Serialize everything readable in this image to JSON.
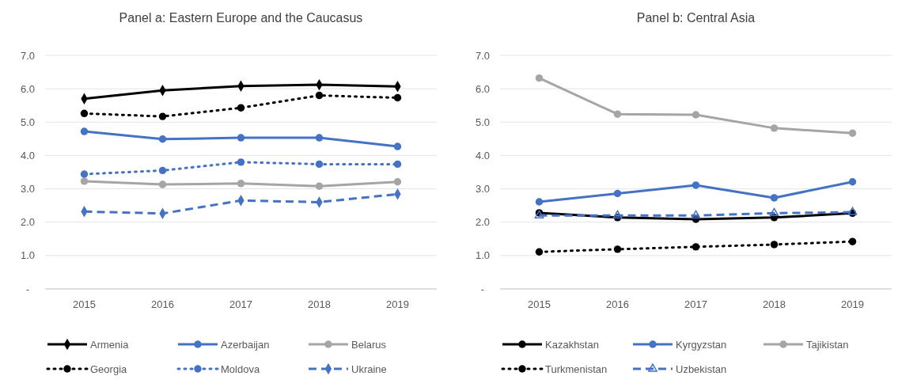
{
  "chart_data": [
    {
      "type": "line",
      "title": "Panel a: Eastern Europe and the Caucasus",
      "categories": [
        "2015",
        "2016",
        "2017",
        "2018",
        "2019"
      ],
      "ylim": [
        0,
        7
      ],
      "yticks": [
        {
          "value": 0,
          "label": "-"
        },
        {
          "value": 1,
          "label": "1.0"
        },
        {
          "value": 2,
          "label": "2.0"
        },
        {
          "value": 3,
          "label": "3.0"
        },
        {
          "value": 4,
          "label": "4.0"
        },
        {
          "value": 5,
          "label": "5.0"
        },
        {
          "value": 6,
          "label": "6.0"
        },
        {
          "value": 7,
          "label": "7.0"
        }
      ],
      "grid": "y",
      "legend": "bottom",
      "series": [
        {
          "name": "Armenia",
          "color": "#000000",
          "marker": "diamond",
          "line_style": "solid",
          "values": [
            5.7,
            5.95,
            6.08,
            6.12,
            6.07
          ]
        },
        {
          "name": "Azerbaijan",
          "color": "#4472c4",
          "marker": "circle",
          "line_style": "solid",
          "values": [
            4.72,
            4.49,
            4.53,
            4.53,
            4.27
          ]
        },
        {
          "name": "Belarus",
          "color": "#a5a5a5",
          "marker": "circle",
          "line_style": "solid",
          "values": [
            3.23,
            3.13,
            3.16,
            3.08,
            3.21
          ]
        },
        {
          "name": "Georgia",
          "color": "#000000",
          "marker": "circle",
          "line_style": "dotted",
          "values": [
            5.26,
            5.17,
            5.43,
            5.8,
            5.73
          ]
        },
        {
          "name": "Moldova",
          "color": "#4472c4",
          "marker": "circle",
          "line_style": "dotted",
          "values": [
            3.44,
            3.55,
            3.8,
            3.74,
            3.74
          ]
        },
        {
          "name": "Ukraine",
          "color": "#4472c4",
          "marker": "diamond",
          "line_style": "dashed",
          "values": [
            2.32,
            2.26,
            2.65,
            2.6,
            2.84
          ]
        }
      ]
    },
    {
      "type": "line",
      "title": "Panel b: Central Asia",
      "categories": [
        "2015",
        "2016",
        "2017",
        "2018",
        "2019"
      ],
      "ylim": [
        0,
        7
      ],
      "yticks": [
        {
          "value": 0,
          "label": "-"
        },
        {
          "value": 1,
          "label": "1.0"
        },
        {
          "value": 2,
          "label": "2.0"
        },
        {
          "value": 3,
          "label": "3.0"
        },
        {
          "value": 4,
          "label": "4.0"
        },
        {
          "value": 5,
          "label": "5.0"
        },
        {
          "value": 6,
          "label": "6.0"
        },
        {
          "value": 7,
          "label": "7.0"
        }
      ],
      "grid": "y",
      "legend": "bottom",
      "series": [
        {
          "name": "Kazakhstan",
          "color": "#000000",
          "marker": "circle",
          "line_style": "solid",
          "values": [
            2.28,
            2.14,
            2.09,
            2.14,
            2.27
          ]
        },
        {
          "name": "Kyrgyzstan",
          "color": "#4472c4",
          "marker": "circle",
          "line_style": "solid",
          "values": [
            2.61,
            2.86,
            3.11,
            2.73,
            3.21
          ]
        },
        {
          "name": "Tajikistan",
          "color": "#a5a5a5",
          "marker": "circle",
          "line_style": "solid",
          "values": [
            6.32,
            5.24,
            5.22,
            4.82,
            4.67
          ]
        },
        {
          "name": "Turkmenistan",
          "color": "#000000",
          "marker": "circle",
          "line_style": "dotted",
          "values": [
            1.11,
            1.19,
            1.26,
            1.33,
            1.42
          ]
        },
        {
          "name": "Uzbekistan",
          "color": "#4472c4",
          "marker": "triangle",
          "line_style": "dashed",
          "values": [
            2.2,
            2.2,
            2.2,
            2.27,
            2.3
          ]
        }
      ]
    }
  ]
}
